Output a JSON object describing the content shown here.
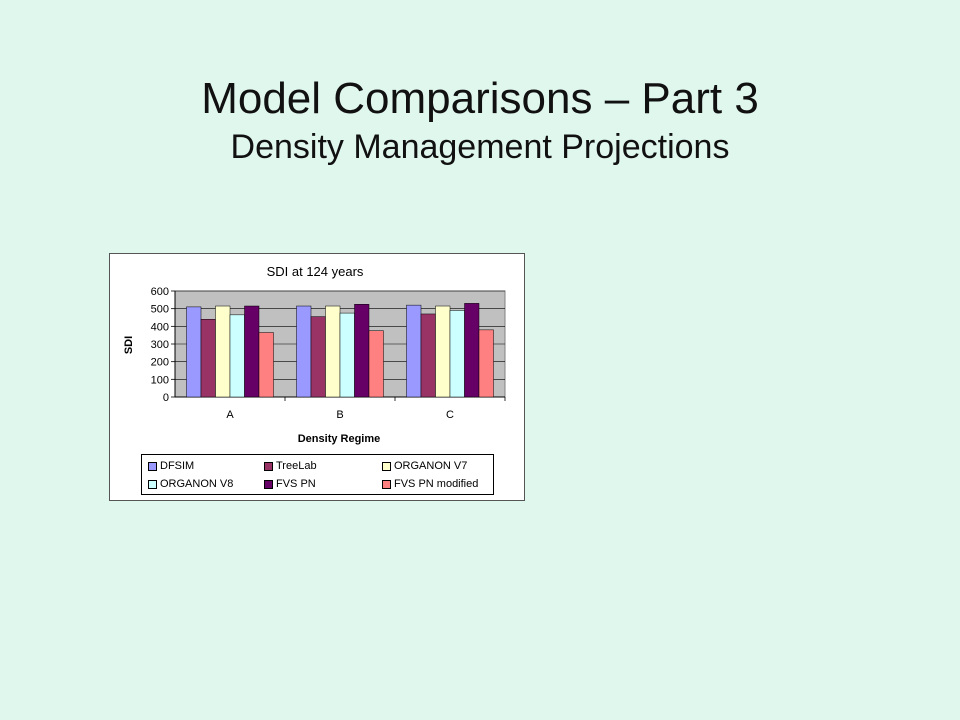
{
  "slide": {
    "title": "Model Comparisons – Part 3",
    "subtitle": "Density Management Projections"
  },
  "chart_data": {
    "type": "bar",
    "title": "SDI at 124 years",
    "xlabel": "Density Regime",
    "ylabel": "SDI",
    "categories": [
      "A",
      "B",
      "C"
    ],
    "ylim": [
      0,
      600
    ],
    "yticks": [
      0,
      100,
      200,
      300,
      400,
      500,
      600
    ],
    "grid": true,
    "legend_position": "bottom",
    "series": [
      {
        "name": "DFSIM",
        "color": "#9999ff",
        "values": [
          510,
          515,
          520
        ]
      },
      {
        "name": "TreeLab",
        "color": "#993366",
        "values": [
          440,
          455,
          470
        ]
      },
      {
        "name": "ORGANON V7",
        "color": "#ffffcc",
        "values": [
          515,
          515,
          515
        ]
      },
      {
        "name": "ORGANON V8",
        "color": "#ccffff",
        "values": [
          465,
          475,
          490
        ]
      },
      {
        "name": "FVS PN",
        "color": "#660066",
        "values": [
          515,
          525,
          530
        ]
      },
      {
        "name": "FVS PN modified",
        "color": "#ff8080",
        "values": [
          365,
          375,
          380
        ]
      }
    ],
    "plot_background": "#c0c0c0"
  }
}
